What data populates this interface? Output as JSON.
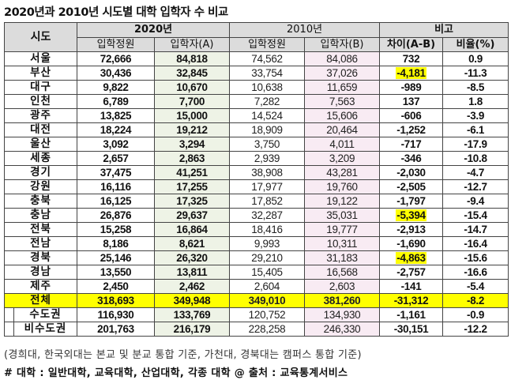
{
  "title": "2020년과 2010년 시도별 대학 입학자 수 비교",
  "headers": {
    "sido": "시도",
    "group_2020": "2020년",
    "group_2010": "2010년",
    "group_compare": "비고",
    "quota_2020": "입학정원",
    "entrants_2020": "입학자(A)",
    "quota_2010": "입학정원",
    "entrants_2010": "입학자(B)",
    "diff": "차이(A-B)",
    "ratio": "비율(%)"
  },
  "rows": [
    {
      "region": "서울",
      "quota_2020": "72,666",
      "entrants_2020": "84,818",
      "quota_2010": "74,562",
      "entrants_2010": "84,086",
      "diff": "732",
      "ratio": "0.9",
      "highlight": false
    },
    {
      "region": "부산",
      "quota_2020": "30,436",
      "entrants_2020": "32,845",
      "quota_2010": "33,754",
      "entrants_2010": "37,026",
      "diff": "-4,181",
      "ratio": "-11.3",
      "highlight": true
    },
    {
      "region": "대구",
      "quota_2020": "9,822",
      "entrants_2020": "10,670",
      "quota_2010": "10,638",
      "entrants_2010": "11,659",
      "diff": "-989",
      "ratio": "-8.5",
      "highlight": false
    },
    {
      "region": "인천",
      "quota_2020": "6,789",
      "entrants_2020": "7,700",
      "quota_2010": "7,282",
      "entrants_2010": "7,563",
      "diff": "137",
      "ratio": "1.8",
      "highlight": false
    },
    {
      "region": "광주",
      "quota_2020": "13,825",
      "entrants_2020": "15,000",
      "quota_2010": "14,524",
      "entrants_2010": "15,606",
      "diff": "-606",
      "ratio": "-3.9",
      "highlight": false
    },
    {
      "region": "대전",
      "quota_2020": "18,224",
      "entrants_2020": "19,212",
      "quota_2010": "18,909",
      "entrants_2010": "20,464",
      "diff": "-1,252",
      "ratio": "-6.1",
      "highlight": false
    },
    {
      "region": "울산",
      "quota_2020": "3,092",
      "entrants_2020": "3,294",
      "quota_2010": "3,750",
      "entrants_2010": "4,011",
      "diff": "-717",
      "ratio": "-17.9",
      "highlight": false
    },
    {
      "region": "세종",
      "quota_2020": "2,657",
      "entrants_2020": "2,863",
      "quota_2010": "2,939",
      "entrants_2010": "3,209",
      "diff": "-346",
      "ratio": "-10.8",
      "highlight": false
    },
    {
      "region": "경기",
      "quota_2020": "37,475",
      "entrants_2020": "41,251",
      "quota_2010": "38,908",
      "entrants_2010": "43,281",
      "diff": "-2,030",
      "ratio": "-4.7",
      "highlight": false
    },
    {
      "region": "강원",
      "quota_2020": "16,116",
      "entrants_2020": "17,255",
      "quota_2010": "17,977",
      "entrants_2010": "19,760",
      "diff": "-2,505",
      "ratio": "-12.7",
      "highlight": false
    },
    {
      "region": "충북",
      "quota_2020": "16,125",
      "entrants_2020": "17,325",
      "quota_2010": "17,852",
      "entrants_2010": "19,122",
      "diff": "-1,797",
      "ratio": "-9.4",
      "highlight": false
    },
    {
      "region": "충남",
      "quota_2020": "26,876",
      "entrants_2020": "29,637",
      "quota_2010": "32,287",
      "entrants_2010": "35,031",
      "diff": "-5,394",
      "ratio": "-15.4",
      "highlight": true
    },
    {
      "region": "전북",
      "quota_2020": "15,258",
      "entrants_2020": "16,864",
      "quota_2010": "18,416",
      "entrants_2010": "19,777",
      "diff": "-2,913",
      "ratio": "-14.7",
      "highlight": false
    },
    {
      "region": "전남",
      "quota_2020": "8,186",
      "entrants_2020": "8,621",
      "quota_2010": "9,993",
      "entrants_2010": "10,311",
      "diff": "-1,690",
      "ratio": "-16.4",
      "highlight": false
    },
    {
      "region": "경북",
      "quota_2020": "25,146",
      "entrants_2020": "26,320",
      "quota_2010": "29,210",
      "entrants_2010": "31,183",
      "diff": "-4,863",
      "ratio": "-15.6",
      "highlight": true
    },
    {
      "region": "경남",
      "quota_2020": "13,550",
      "entrants_2020": "13,811",
      "quota_2010": "15,405",
      "entrants_2010": "16,568",
      "diff": "-2,757",
      "ratio": "-16.6",
      "highlight": false
    },
    {
      "region": "제주",
      "quota_2020": "2,450",
      "entrants_2020": "2,462",
      "quota_2010": "2,604",
      "entrants_2010": "2,603",
      "diff": "-141",
      "ratio": "-5.4",
      "highlight": false
    }
  ],
  "total": {
    "region": "전체",
    "quota_2020": "318,693",
    "entrants_2020": "349,948",
    "quota_2010": "349,010",
    "entrants_2010": "381,260",
    "diff": "-31,312",
    "ratio": "-8.2"
  },
  "subtotals": [
    {
      "region": "수도권",
      "quota_2020": "116,930",
      "entrants_2020": "133,769",
      "quota_2010": "120,752",
      "entrants_2010": "134,930",
      "diff": "-1,161",
      "ratio": "-0.9"
    },
    {
      "region": "비수도권",
      "quota_2020": "201,763",
      "entrants_2020": "216,179",
      "quota_2010": "228,258",
      "entrants_2010": "246,330",
      "diff": "-30,151",
      "ratio": "-12.2"
    }
  ],
  "note": "(경희대, 한국외대는 본교 및 분교 통합 기준, 가천대, 경북대는 캠퍼스 통합 기준)",
  "footer": "# 대학 : 일반대학, 교육대학, 산업대학, 각종 대학 @ 출처 : 교육통계서비스",
  "colors": {
    "header_bg": "#dcdcdc",
    "col_a_bg": "#eef3e6",
    "col_b_bg": "#f8ebf3",
    "highlight": "#ffff00",
    "border": "#444444"
  }
}
